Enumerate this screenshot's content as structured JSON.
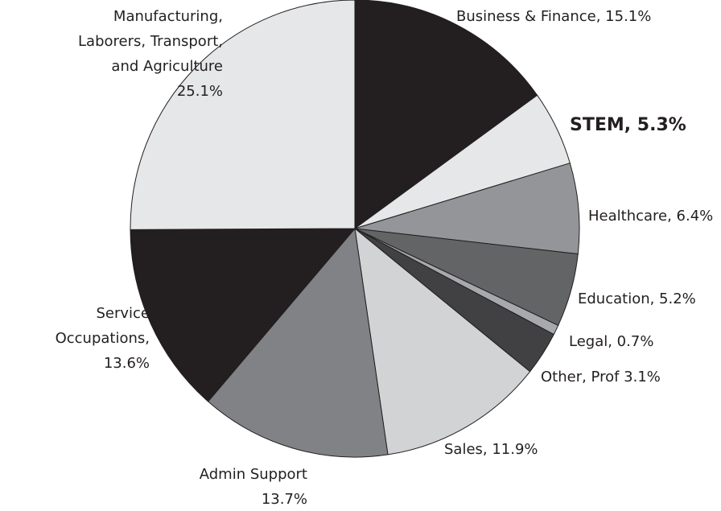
{
  "chart_data": {
    "type": "pie",
    "values": [
      15.1,
      5.3,
      6.4,
      5.2,
      0.7,
      3.1,
      11.9,
      13.7,
      13.6,
      25.1
    ],
    "value_labels": [
      [
        "Business & Finance, 15.1%"
      ],
      [
        "STEM, 5.3%"
      ],
      [
        "Healthcare, 6.4%"
      ],
      [
        "Education, 5.2%"
      ],
      [
        "Legal, 0.7%"
      ],
      [
        "Other, Prof 3.1%"
      ],
      [
        "Sales, 11.9%"
      ],
      [
        "Admin Support",
        "13.7%"
      ],
      [
        "Service",
        "Occupations,",
        "13.6%"
      ],
      [
        "Manufacturing,",
        "Laborers, Transport,",
        "and Agriculture",
        "25.1%"
      ]
    ],
    "colors": [
      "#231f20",
      "#e6e7e8",
      "#939598",
      "#636466",
      "#a7a9ac",
      "#414042",
      "#d1d3d4",
      "#808285",
      "#231f20",
      "#e6e7e8"
    ]
  }
}
